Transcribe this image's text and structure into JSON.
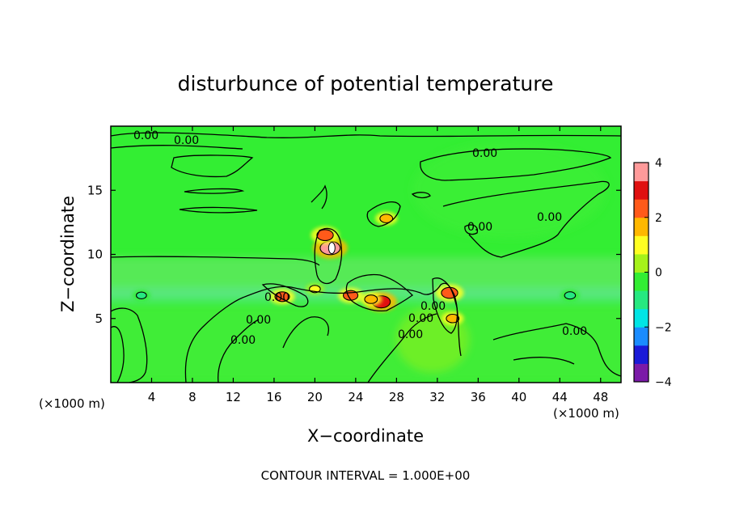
{
  "chart_data": {
    "type": "heatmap",
    "title": "disturbunce of potential temperature",
    "xlabel": "X−coordinate",
    "ylabel": "Z−coordinate",
    "x_unit_left": "(×1000 m)",
    "x_unit_right": "(×1000 m)",
    "footer": "CONTOUR INTERVAL = 1.000E+00",
    "xlim": [
      0,
      50
    ],
    "ylim": [
      0,
      20
    ],
    "x_ticks": [
      4,
      8,
      12,
      16,
      20,
      24,
      28,
      32,
      36,
      40,
      44,
      48
    ],
    "x_tick_labels": [
      "4",
      "8",
      "12",
      "16",
      "20",
      "24",
      "28",
      "32",
      "36",
      "40",
      "44",
      "48"
    ],
    "y_ticks": [
      5,
      10,
      15
    ],
    "y_tick_labels": [
      "5",
      "10",
      "15"
    ],
    "contour_labels": [
      "0.00",
      "0.00",
      "0.00",
      "0.00",
      "0.00",
      "0.00",
      "0.00",
      "0.00",
      "0.00",
      "0.00",
      "0.00",
      "0.00"
    ],
    "colorbar": {
      "range": [
        -4,
        4
      ],
      "ticks": [
        4,
        2,
        0,
        -2,
        -4
      ],
      "tick_labels": [
        "4",
        "2",
        "0",
        "−2",
        "−4"
      ],
      "colors": [
        "#7b1aa8",
        "#1a1ad8",
        "#1a8cff",
        "#00e5e5",
        "#26e880",
        "#33ee33",
        "#a6f21a",
        "#ffff22",
        "#ffb800",
        "#ff5a1a",
        "#e01010",
        "#ff9a9a"
      ]
    },
    "field_background": "#33ee33",
    "features": [
      {
        "x": 21.5,
        "y": 10.5,
        "value": 3.5
      },
      {
        "x": 21.0,
        "y": 11.5,
        "value": 2.5
      },
      {
        "x": 26.5,
        "y": 6.3,
        "value": 3.0
      },
      {
        "x": 25.5,
        "y": 6.5,
        "value": 1.5
      },
      {
        "x": 23.5,
        "y": 6.8,
        "value": 2.0
      },
      {
        "x": 16.8,
        "y": 6.7,
        "value": 2.0
      },
      {
        "x": 33.2,
        "y": 7.0,
        "value": 2.5
      },
      {
        "x": 33.5,
        "y": 5.0,
        "value": 1.5
      },
      {
        "x": 27.0,
        "y": 12.8,
        "value": 1.5
      },
      {
        "x": 20.0,
        "y": 7.3,
        "value": 1.0
      },
      {
        "x": 45.0,
        "y": 6.8,
        "value": -1.0
      },
      {
        "x": 3.0,
        "y": 6.8,
        "value": -0.8
      }
    ]
  }
}
